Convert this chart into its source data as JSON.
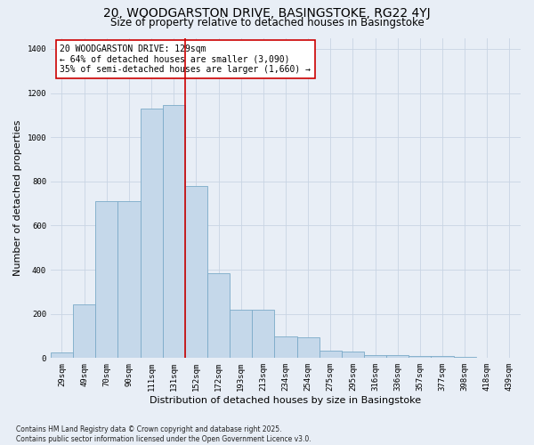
{
  "title_line1": "20, WOODGARSTON DRIVE, BASINGSTOKE, RG22 4YJ",
  "title_line2": "Size of property relative to detached houses in Basingstoke",
  "xlabel": "Distribution of detached houses by size in Basingstoke",
  "ylabel": "Number of detached properties",
  "categories": [
    "29sqm",
    "49sqm",
    "70sqm",
    "90sqm",
    "111sqm",
    "131sqm",
    "152sqm",
    "172sqm",
    "193sqm",
    "213sqm",
    "234sqm",
    "254sqm",
    "275sqm",
    "295sqm",
    "316sqm",
    "336sqm",
    "357sqm",
    "377sqm",
    "398sqm",
    "418sqm",
    "439sqm"
  ],
  "values": [
    25,
    245,
    710,
    710,
    1130,
    1145,
    780,
    385,
    220,
    220,
    100,
    95,
    35,
    30,
    15,
    15,
    10,
    10,
    5,
    0,
    0
  ],
  "bar_color": "#c5d8ea",
  "bar_edge_color": "#7baac8",
  "grid_color": "#c8d4e4",
  "property_line_color": "#cc0000",
  "annotation_text": "20 WOODGARSTON DRIVE: 129sqm\n← 64% of detached houses are smaller (3,090)\n35% of semi-detached houses are larger (1,660) →",
  "annotation_box_color": "#ffffff",
  "annotation_box_edge": "#cc0000",
  "ylim": [
    0,
    1450
  ],
  "footnote": "Contains HM Land Registry data © Crown copyright and database right 2025.\nContains public sector information licensed under the Open Government Licence v3.0.",
  "bg_color": "#e8eef6",
  "plot_bg_color": "#e8eef6",
  "title_fontsize": 10,
  "subtitle_fontsize": 8.5,
  "tick_fontsize": 6.5,
  "label_fontsize": 8,
  "footnote_fontsize": 5.5,
  "annotation_fontsize": 7,
  "ytick_values": [
    0,
    200,
    400,
    600,
    800,
    1000,
    1200,
    1400
  ]
}
